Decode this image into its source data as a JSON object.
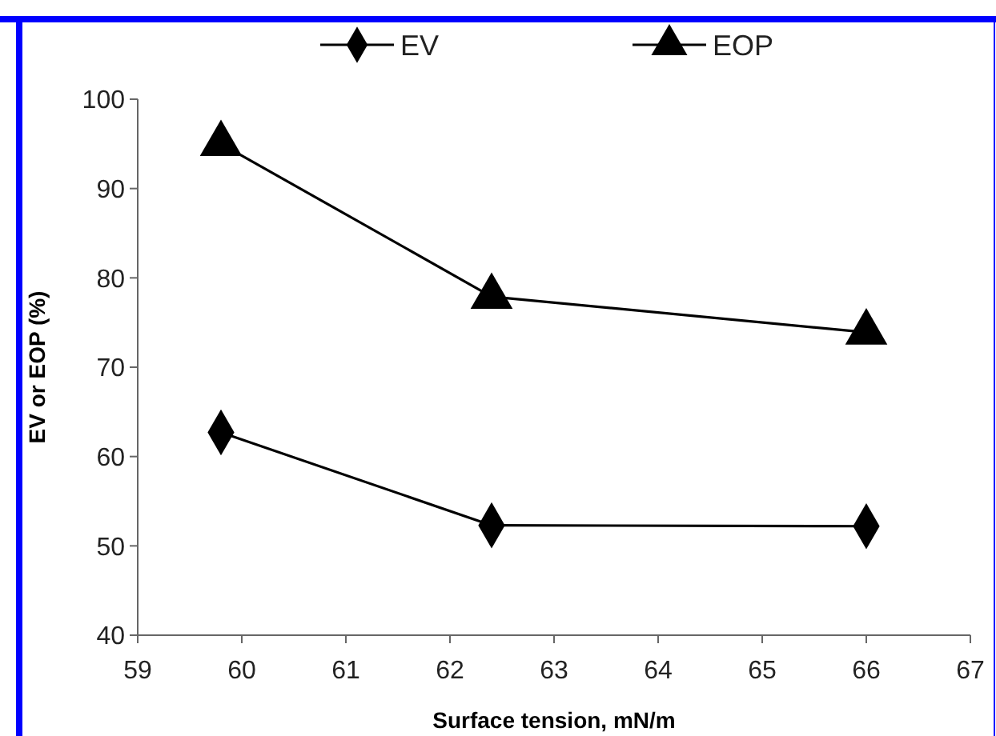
{
  "chart_data": {
    "type": "line",
    "xlabel": "Surface tension, mN/m",
    "ylabel": "EV or EOP (%)",
    "x": [
      59.8,
      62.4,
      66
    ],
    "series": [
      {
        "name": "EV",
        "color": "#000000",
        "values": [
          62.7,
          52.3,
          52.2
        ],
        "marker": "diamond"
      },
      {
        "name": "EOP",
        "color": "#000000",
        "values": [
          95,
          77.9,
          73.9
        ],
        "marker": "triangle"
      }
    ],
    "xlim": [
      59,
      67
    ],
    "xticks": [
      59,
      60,
      61,
      62,
      63,
      64,
      65,
      66,
      67
    ],
    "ylim": [
      40,
      100
    ],
    "yticks": [
      40,
      50,
      60,
      70,
      80,
      90,
      100
    ],
    "grid": false,
    "legend": "top",
    "line_style": "solid"
  }
}
